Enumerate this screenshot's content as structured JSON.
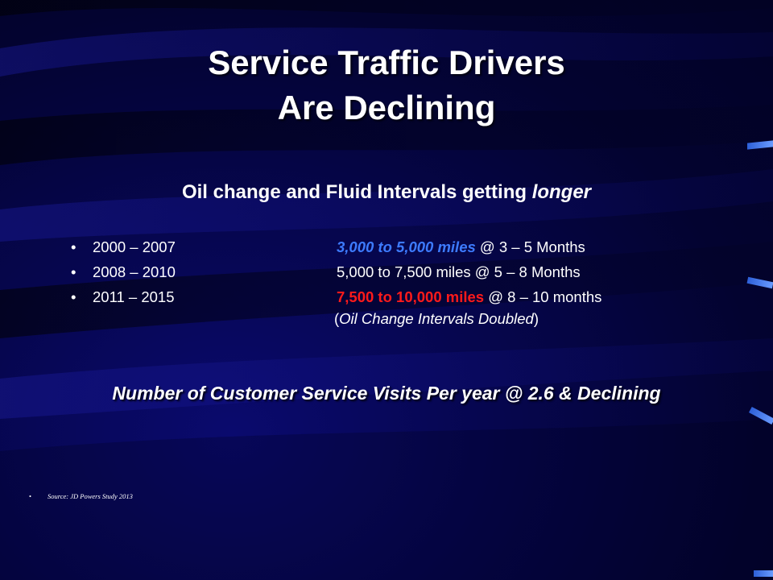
{
  "slide": {
    "title_line1": "Service Traffic Drivers",
    "title_line2": "Are Declining",
    "subhead": {
      "text": "Oil change and Fluid Intervals getting ",
      "emphasis": "longer"
    },
    "intervals": [
      {
        "bullet": "•",
        "years": "2000 – 2007",
        "miles": "3,000 to 5,000 miles",
        "rest": " @ 3 – 5 Months",
        "miles_color": "#3d7bff"
      },
      {
        "bullet": "•",
        "years": "2008 – 2010",
        "miles": "5,000 to 7,500 miles",
        "rest": " @ 5 – 8 Months",
        "miles_color": "#ffffff"
      },
      {
        "bullet": "•",
        "years": "2011 – 2015",
        "miles": "7,500 to 10,000 miles",
        "rest": " @ 8 – 10 months",
        "miles_color": "#ff1a1a"
      }
    ],
    "note": {
      "open": "(",
      "text": "Oil Change Intervals Doubled",
      "close": ")"
    },
    "visits": "Number of Customer Service Visits Per year @ 2.6 & Declining",
    "source": {
      "bullet": "•",
      "text": "Source: JD Powers Study 2013"
    }
  },
  "theme": {
    "background": "#06064e",
    "text_color": "#ffffff",
    "accent_blue": "#3d7bff",
    "accent_red": "#ff1a1a"
  }
}
